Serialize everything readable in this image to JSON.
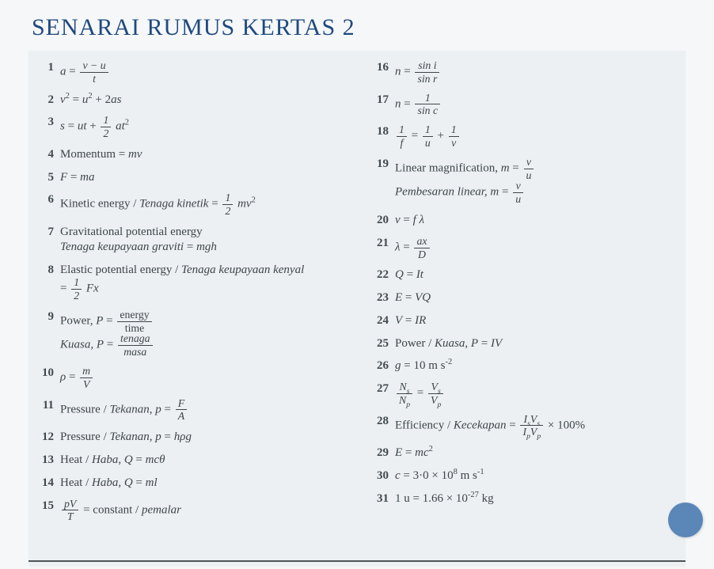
{
  "title": "SENARAI RUMUS KERTAS 2",
  "colors": {
    "title": "#1f497d",
    "text": "#3d4548",
    "page_bg": "#ffffff",
    "sheet_bg": "#ecf0f3",
    "circle": "#5b86b8",
    "rule": "#4c5256"
  },
  "left": [
    {
      "n": "1",
      "html": "<span class='ital'>a</span> = <span class='frac'><span class='n'>v − u</span><span class='d'>t</span></span>"
    },
    {
      "n": "2",
      "html": "<span class='ital'>v</span><sup>2</sup> = <span class='ital'>u</span><sup>2</sup> + 2<span class='ital'>as</span>"
    },
    {
      "n": "3",
      "html": "<span class='ital'>s</span> = <span class='ital'>ut</span> + <span class='frac'><span class='n'>1</span><span class='d'>2</span></span> <span class='ital'>at</span><sup>2</sup>"
    },
    {
      "n": "4",
      "html": "Momentum = <span class='ital'>mv</span>"
    },
    {
      "n": "5",
      "html": "<span class='ital'>F</span> = <span class='ital'>ma</span>"
    },
    {
      "n": "6",
      "html": "Kinetic energy / <span class='ital'>Tenaga kinetik</span> = <span class='frac'><span class='n'>1</span><span class='d'>2</span></span> <span class='ital'>mv</span><sup>2</sup>"
    },
    {
      "n": "7",
      "html": "Gravitational potential energy<br><span class='ital'>Tenaga keupayaan graviti</span> = <span class='ital'>mgh</span>"
    },
    {
      "n": "8",
      "html": "Elastic potential energy / <span class='ital'>Tenaga keupayaan kenyal</span><br>= <span class='frac'><span class='n'>1</span><span class='d'>2</span></span> <span class='ital'>Fx</span>"
    },
    {
      "n": "9",
      "html": "Power, <span class='ital'>P</span> = <span class='frac'><span class='n' style='font-style:normal'>energy</span><span class='d' style='font-style:normal'>time</span></span><br><span class='ital'>Kuasa, P</span> = <span class='frac'><span class='n'><span class='ital'>tenaga</span></span><span class='d'><span class='ital'>masa</span></span></span>"
    },
    {
      "n": "10",
      "html": "<span class='ital'>ρ</span> = <span class='frac'><span class='n'>m</span><span class='d'>V</span></span>"
    },
    {
      "n": "11",
      "html": "Pressure / <span class='ital'>Tekanan</span>, <span class='ital'>p</span> = <span class='frac'><span class='n'>F</span><span class='d'>A</span></span>"
    },
    {
      "n": "12",
      "html": "Pressure / <span class='ital'>Tekanan</span>, <span class='ital'>p</span> = <span class='ital'>hρg</span>"
    },
    {
      "n": "13",
      "html": "Heat / <span class='ital'>Haba</span>, <span class='ital'>Q</span> = <span class='ital'>mcθ</span>"
    },
    {
      "n": "14",
      "html": "Heat / <span class='ital'>Haba</span>, <span class='ital'>Q</span> = <span class='ital'>ml</span>"
    },
    {
      "n": "15",
      "html": "<span class='frac'><span class='n'>pV</span><span class='d'>T</span></span> = constant / <span class='ital'>pemalar</span>"
    }
  ],
  "right": [
    {
      "n": "16",
      "html": "<span class='ital'>n</span> = <span class='frac'><span class='n'>sin <span class=\"ital\">i</span></span><span class='d'>sin <span class=\"ital\">r</span></span></span>"
    },
    {
      "n": "17",
      "html": "<span class='ital'>n</span> = <span class='frac'><span class='n'>1</span><span class='d'>sin <span class=\"ital\">c</span></span></span>"
    },
    {
      "n": "18",
      "html": "<span class='frac'><span class='n'>1</span><span class='d'>f</span></span> = <span class='frac'><span class='n'>1</span><span class='d'>u</span></span> + <span class='frac'><span class='n'>1</span><span class='d'>v</span></span>"
    },
    {
      "n": "19",
      "html": "Linear magnification, <span class='ital'>m</span> = <span class='frac'><span class='n'>v</span><span class='d'>u</span></span><br><span class='ital'>Pembesaran linear, m</span> = <span class='frac'><span class='n'>v</span><span class='d'>u</span></span>"
    },
    {
      "n": "20",
      "html": "<span class='ital'>v</span> = <span class='ital'>f λ</span>"
    },
    {
      "n": "21",
      "html": "<span class='ital'>λ</span> = <span class='frac'><span class='n'>ax</span><span class='d'>D</span></span>"
    },
    {
      "n": "22",
      "html": "<span class='ital'>Q</span> = <span class='ital'>It</span>"
    },
    {
      "n": "23",
      "html": "<span class='ital'>E</span> = <span class='ital'>VQ</span>"
    },
    {
      "n": "24",
      "html": "<span class='ital'>V</span> = <span class='ital'>IR</span>"
    },
    {
      "n": "25",
      "html": "Power / <span class='ital'>Kuasa</span>, <span class='ital'>P</span> = <span class='ital'>IV</span>"
    },
    {
      "n": "26",
      "html": "<span class='ital'>g</span> = 10 m s<sup>-2</sup>"
    },
    {
      "n": "27",
      "html": "<span class='frac'><span class='n'>N<sub>s</sub></span><span class='d'>N<sub>p</sub></span></span> = <span class='frac'><span class='n'>V<sub>s</sub></span><span class='d'>V<sub>p</sub></span></span>"
    },
    {
      "n": "28",
      "html": "Efficiency / <span class='ital'>Kecekapan</span> = <span class='frac'><span class='n'>I<sub>s</sub>V<sub>s</sub></span><span class='d'>I<sub>p</sub>V<sub>p</sub></span></span> × 100%"
    },
    {
      "n": "29",
      "html": "<span class='ital'>E</span> = <span class='ital'>mc</span><sup>2</sup>"
    },
    {
      "n": "30",
      "html": "<span class='ital'>c</span> = 3·0 × 10<sup>8</sup> m s<sup>-1</sup>"
    },
    {
      "n": "31",
      "html": "1 u = 1.66 × 10<sup>-27</sup> kg"
    }
  ]
}
